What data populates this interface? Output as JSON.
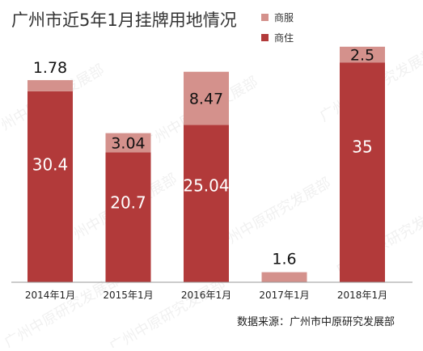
{
  "chart_data": {
    "type": "bar",
    "stacked": true,
    "title": "广州市近5年1月挂牌用地情况",
    "categories": [
      "2014年1月",
      "2015年1月",
      "2016年1月",
      "2017年1月",
      "2018年1月"
    ],
    "series": [
      {
        "name": "商住",
        "values": [
          30.4,
          20.7,
          25.04,
          0,
          35
        ],
        "color": "#b23a3a",
        "labels": [
          "30.4",
          "20.7",
          "25.04",
          "",
          "35"
        ]
      },
      {
        "name": "商服",
        "values": [
          1.78,
          3.04,
          8.47,
          1.6,
          2.5
        ],
        "color": "#d4918c",
        "labels": [
          "1.78",
          "3.04",
          "8.47",
          "1.6",
          "2.5"
        ]
      }
    ],
    "legend": {
      "placement": "top-right",
      "order": [
        "商服",
        "商住"
      ]
    },
    "ylim": [
      0,
      38.5
    ],
    "grid": false,
    "axis_color": "#999999",
    "source": "数据来源：广州市中原研究发展部",
    "watermark": "广州中原研究发展部"
  }
}
